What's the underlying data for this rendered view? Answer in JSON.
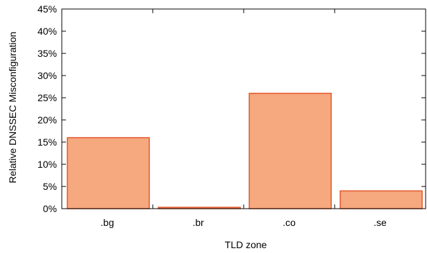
{
  "chart_data": {
    "type": "bar",
    "title": "",
    "xlabel": "TLD zone",
    "ylabel": "Relative DNSSEC Misconfiguration",
    "categories": [
      ".bg",
      ".br",
      ".co",
      ".se"
    ],
    "values": [
      16,
      0.3,
      26,
      4
    ],
    "ylim": [
      0,
      45
    ],
    "yticks": [
      0,
      5,
      10,
      15,
      20,
      25,
      30,
      35,
      40,
      45
    ],
    "ytick_labels": [
      "0%",
      "5%",
      "10%",
      "15%",
      "20%",
      "25%",
      "30%",
      "35%",
      "40%",
      "45%"
    ],
    "grid": false,
    "legend": "none",
    "colors": {
      "bar_fill": "#F6A87F",
      "bar_stroke": "#E4562A",
      "axis": "#000000"
    }
  }
}
